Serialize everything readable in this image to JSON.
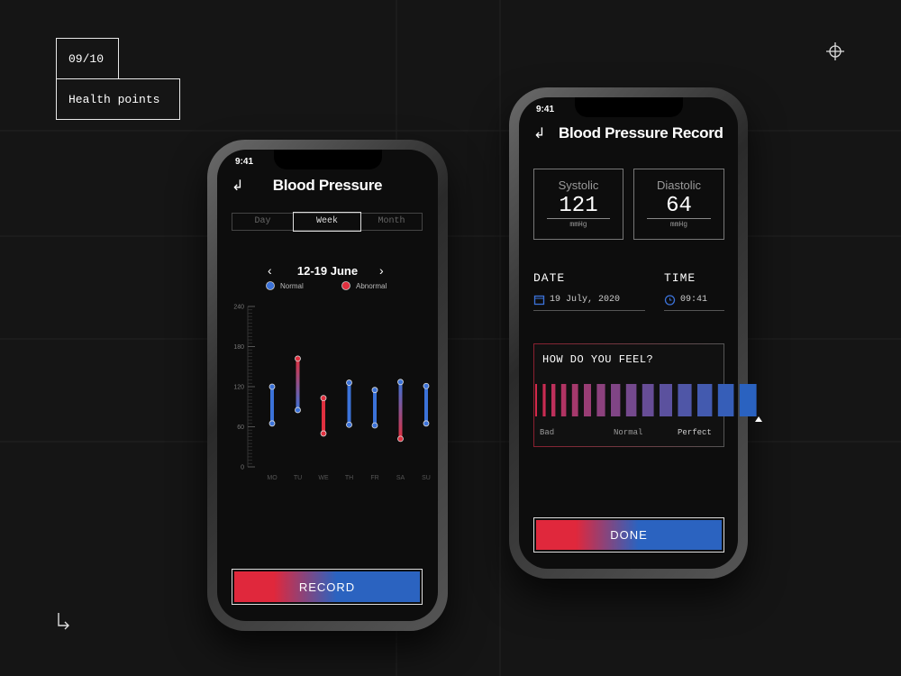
{
  "header": {
    "counter": "09/10",
    "title": "Health points"
  },
  "left_phone": {
    "time": "9:41",
    "title": "Blood Pressure",
    "tabs": [
      "Day",
      "Week",
      "Month"
    ],
    "range": "12-19 June",
    "button": "RECORD"
  },
  "chart_data": {
    "type": "range",
    "categories": [
      "MO",
      "TU",
      "WE",
      "TH",
      "FR",
      "SA",
      "SU"
    ],
    "low": [
      65,
      85,
      50,
      63,
      62,
      42,
      65
    ],
    "high": [
      120,
      162,
      103,
      126,
      115,
      127,
      121
    ],
    "bar_colors": [
      [
        "#3b72d9",
        "#3b72d9"
      ],
      [
        "#e0303f",
        "#3b72d9"
      ],
      [
        "#e0303f",
        "#e0303f"
      ],
      [
        "#3b72d9",
        "#3b72d9"
      ],
      [
        "#3b72d9",
        "#3b72d9"
      ],
      [
        "#3b72d9",
        "#e0303f"
      ],
      [
        "#3b72d9",
        "#3b72d9"
      ]
    ],
    "legend": [
      {
        "name": "Normal",
        "color": "#3b72d9"
      },
      {
        "name": "Abnormal",
        "color": "#e0303f"
      }
    ],
    "ylim": [
      0,
      240
    ],
    "yticks": [
      0,
      60,
      120,
      180,
      240
    ]
  },
  "right_phone": {
    "time": "9:41",
    "title": "Blood Pressure Record",
    "systolic": {
      "label": "Systolic",
      "value": 121,
      "unit": "mmHg"
    },
    "diastolic": {
      "label": "Diastolic",
      "value": 64,
      "unit": "mmHg"
    },
    "date": {
      "label": "DATE",
      "value": "19 July, 2020"
    },
    "time_field": {
      "label": "TIME",
      "value": "09:41"
    },
    "feel": {
      "question": "HOW DO YOU FEEL?",
      "labels": [
        "Bad",
        "Normal",
        "Perfect"
      ]
    },
    "button": "DONE"
  }
}
